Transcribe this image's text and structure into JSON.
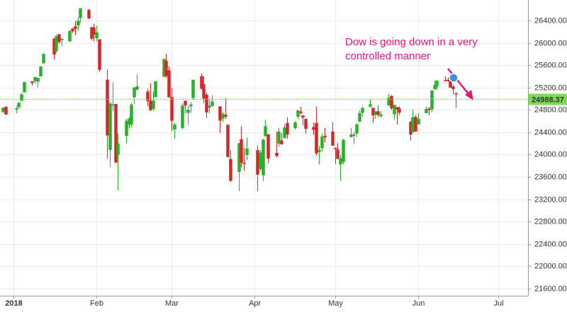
{
  "chart_data": {
    "type": "candlestick",
    "up_color": "#27b327",
    "down_color": "#d62728",
    "grid": true,
    "xlim": [
      -5,
      192
    ],
    "ylim": [
      21473,
      26767
    ],
    "xticks": [
      {
        "value": 0,
        "label": "2018"
      },
      {
        "value": 31,
        "label": "Feb"
      },
      {
        "value": 59,
        "label": "Mar"
      },
      {
        "value": 90,
        "label": "Apr"
      },
      {
        "value": 120,
        "label": "May"
      },
      {
        "value": 151,
        "label": "Jun"
      },
      {
        "value": 181,
        "label": "Jul"
      }
    ],
    "yticks": [
      {
        "value": 21600,
        "label": "21600.00"
      },
      {
        "value": 22000,
        "label": "22000.00"
      },
      {
        "value": 22400,
        "label": "22400.00"
      },
      {
        "value": 22800,
        "label": "22800.00"
      },
      {
        "value": 23200,
        "label": "23200.00"
      },
      {
        "value": 23600,
        "label": "23600.00"
      },
      {
        "value": 24000,
        "label": "24000.00"
      },
      {
        "value": 24400,
        "label": "24400.00"
      },
      {
        "value": 24800,
        "label": "24800.00"
      },
      {
        "value": 25200,
        "label": "25200.00"
      },
      {
        "value": 25600,
        "label": "25600.00"
      },
      {
        "value": 26000,
        "label": "26000.00"
      },
      {
        "value": 26400,
        "label": "26400.00"
      }
    ],
    "last_price": 24988.37,
    "last_price_color": "#7ed957",
    "annotation": {
      "lines": [
        "Dow is going down in a very",
        "controlled manner"
      ],
      "color": "#e6157a"
    },
    "x": [
      -4,
      -3,
      1,
      2,
      3,
      4,
      7,
      8,
      9,
      10,
      11,
      15,
      16,
      17,
      18,
      21,
      22,
      23,
      24,
      25,
      28,
      29,
      30,
      31,
      32,
      35,
      36,
      37,
      38,
      39,
      42,
      43,
      44,
      45,
      46,
      50,
      51,
      52,
      53,
      56,
      57,
      58,
      59,
      60,
      63,
      64,
      65,
      66,
      67,
      70,
      71,
      72,
      73,
      74,
      77,
      78,
      79,
      80,
      81,
      84,
      85,
      86,
      87,
      91,
      92,
      93,
      94,
      95,
      98,
      99,
      100,
      101,
      102,
      105,
      106,
      107,
      108,
      109,
      112,
      113,
      114,
      115,
      116,
      119,
      120,
      121,
      122,
      123,
      126,
      127,
      128,
      129,
      130,
      133,
      134,
      135,
      136,
      137,
      140,
      141,
      142,
      143,
      144,
      148,
      149,
      150,
      151,
      154,
      155,
      156,
      157,
      158,
      161,
      162,
      163,
      164,
      165
    ],
    "open": [
      24766,
      24849,
      24809,
      24850,
      24964,
      25115,
      25309,
      25318,
      25307,
      25403,
      25638,
      26071,
      25855,
      26152,
      26055,
      26030,
      26251,
      26293,
      26315,
      26448,
      26588,
      26277,
      26268,
      26084,
      26061,
      25337,
      24085,
      24893,
      24902,
      24002,
      24337,
      24540,
      24535,
      25028,
      25165,
      25125,
      24966,
      24823,
      25031,
      25395,
      25676,
      25505,
      25025,
      24451,
      24478,
      24961,
      24750,
      24866,
      25015,
      25399,
      25256,
      25072,
      24845,
      24873,
      24860,
      24646,
      24708,
      24532,
      23917,
      23693,
      24271,
      23850,
      23996,
      24076,
      23741,
      23632,
      24333,
      24358,
      24029,
      24200,
      24250,
      24298,
      24563,
      24478,
      24680,
      24767,
      24697,
      24635,
      24488,
      24563,
      24049,
      24117,
      24335,
      24409,
      24118,
      24086,
      23827,
      23873,
      24317,
      24341,
      24380,
      24593,
      24749,
      24861,
      24833,
      24714,
      24773,
      24689,
      24883,
      25047,
      24726,
      24848,
      24822,
      24582,
      24401,
      24670,
      24542,
      24743,
      24820,
      24809,
      25174,
      25223,
      25329,
      25336,
      25315,
      25214,
      25094
    ],
    "high": [
      24840,
      24871,
      24864,
      24941,
      25105,
      25299,
      25311,
      25385,
      25374,
      25575,
      25804,
      26086,
      26153,
      26154,
      26072,
      26215,
      26269,
      26392,
      26459,
      26617,
      26608,
      26284,
      26338,
      26307,
      26062,
      25520,
      24946,
      25292,
      24904,
      24382,
      24640,
      24671,
      24925,
      25200,
      25432,
      25172,
      25273,
      25131,
      25310,
      25709,
      25800,
      25576,
      25193,
      24561,
      24919,
      24962,
      24873,
      24940,
      25336,
      25449,
      25402,
      25112,
      24984,
      25060,
      24860,
      24766,
      25016,
      24532,
      24084,
      24202,
      24507,
      24117,
      24305,
      24164,
      24090,
      24288,
      24622,
      24374,
      24409,
      24477,
      24386,
      24545,
      24674,
      24600,
      24786,
      24858,
      24697,
      24640,
      24576,
      24858,
      24154,
      24379,
      24480,
      24581,
      24118,
      24205,
      23996,
      24280,
      24474,
      24406,
      24542,
      24790,
      24868,
      24995,
      24838,
      24782,
      24881,
      24777,
      25086,
      25064,
      24893,
      24848,
      24863,
      24606,
      24801,
      24709,
      24736,
      24861,
      24859,
      25149,
      25326,
      25337,
      25402,
      25380,
      25401,
      25251,
      25119
    ],
    "low": [
      24746,
      24719,
      24741,
      24825,
      24963,
      25114,
      25235,
      25266,
      25202,
      25400,
      25621,
      25699,
      25828,
      25985,
      25941,
      26014,
      26181,
      26139,
      26218,
      26365,
      26425,
      26041,
      26028,
      26026,
      25490,
      23924,
      23778,
      24785,
      23849,
      23360,
      24204,
      24470,
      24490,
      24900,
      25149,
      24868,
      24785,
      24780,
      25025,
      25386,
      25377,
      25017,
      24416,
      24280,
      24457,
      24734,
      24530,
      24747,
      24980,
      25168,
      24923,
      24654,
      24736,
      24860,
      24388,
      24584,
      24641,
      23958,
      23509,
      23344,
      23768,
      23710,
      23900,
      23344,
      23700,
      23523,
      24318,
      23848,
      23949,
      24143,
      24173,
      24288,
      24280,
      24450,
      24629,
      24716,
      24526,
      24372,
      24353,
      23983,
      23823,
      24059,
      24221,
      24166,
      23829,
      23925,
      23531,
      23824,
      24302,
      24186,
      24309,
      24589,
      24682,
      24842,
      24576,
      24638,
      24674,
      24665,
      24883,
      24803,
      24630,
      24541,
      24708,
      24252,
      24401,
      24406,
      24542,
      24742,
      24702,
      24766,
      25152,
      25159,
      25322,
      25301,
      25201,
      25081,
      24835
    ],
    "close": [
      24838,
      24719,
      24824,
      24922,
      25075,
      25295,
      25283,
      25385,
      25369,
      25575,
      25803,
      25793,
      26116,
      26017,
      26072,
      26214,
      26211,
      26253,
      26392,
      26617,
      26440,
      26077,
      26149,
      26187,
      25521,
      24346,
      24912,
      24893,
      23860,
      24191,
      24601,
      24640,
      24893,
      25200,
      25219,
      24965,
      24798,
      24963,
      25310,
      25709,
      25410,
      25029,
      24608,
      24538,
      24875,
      24884,
      24801,
      24895,
      25336,
      25179,
      25008,
      24759,
      24874,
      24946,
      24611,
      24727,
      24683,
      23958,
      23533,
      24202,
      23858,
      23849,
      24103,
      23644,
      24033,
      24264,
      24505,
      23933,
      23979,
      24408,
      24189,
      24483,
      24360,
      24574,
      24787,
      24748,
      24665,
      24463,
      24448,
      24024,
      24083,
      24322,
      24311,
      24163,
      24099,
      23925,
      23930,
      24263,
      24357,
      24361,
      24542,
      24740,
      24831,
      24899,
      24706,
      24768,
      24714,
      24715,
      25013,
      24834,
      24887,
      24812,
      24753,
      24361,
      24668,
      24416,
      24635,
      24813,
      24799,
      25146,
      25241,
      25317,
      25322,
      25320,
      25201,
      25175,
      25090
    ]
  }
}
